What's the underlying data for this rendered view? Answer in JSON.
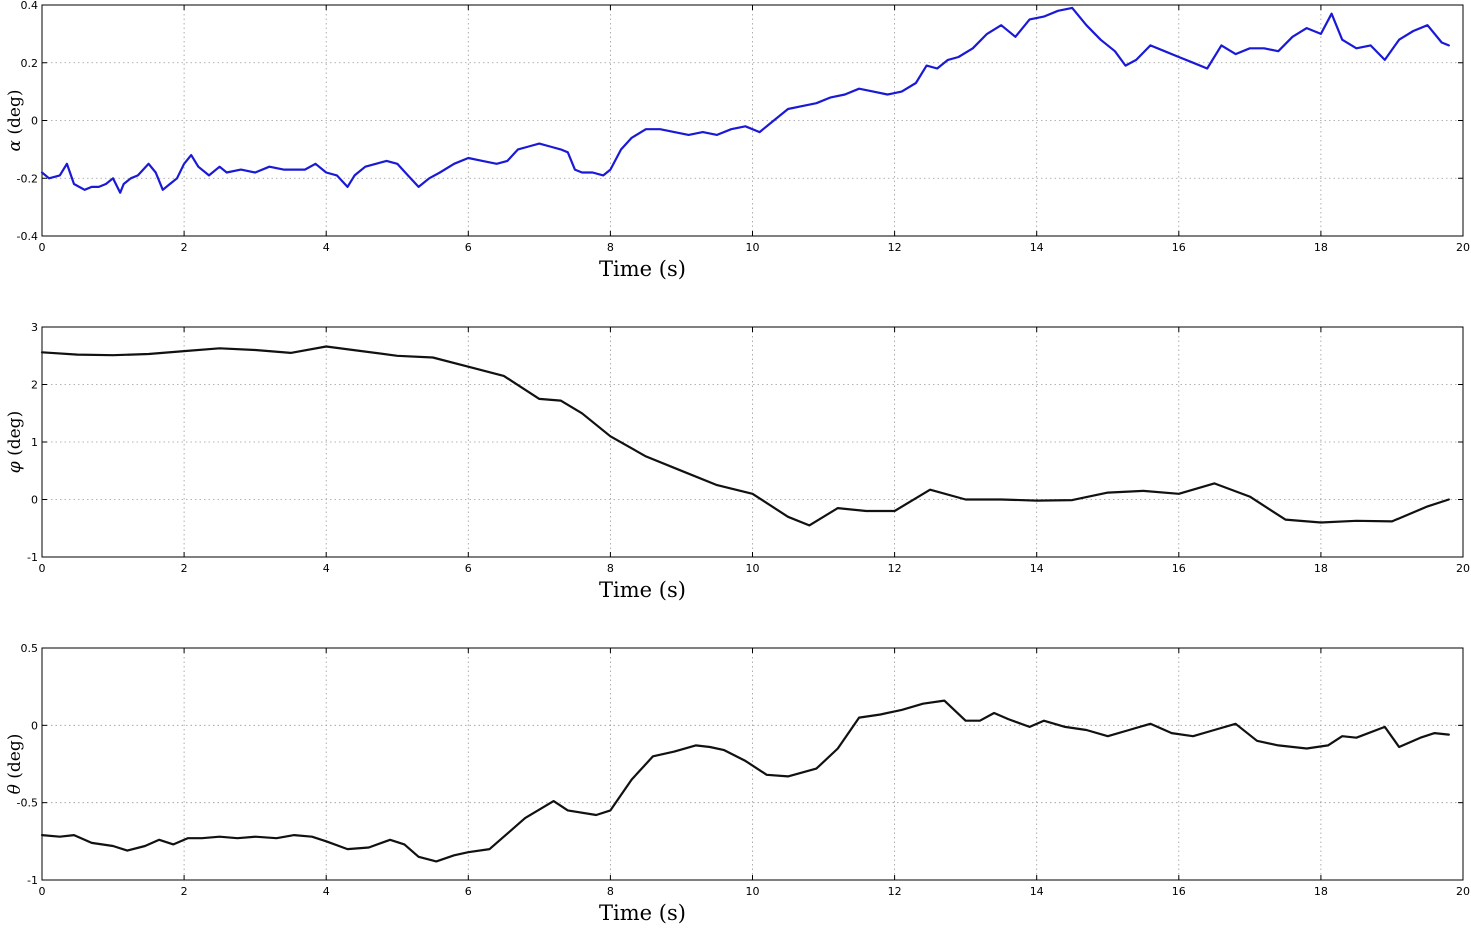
{
  "chart_data": [
    {
      "type": "line",
      "ylabel_symbol": "α",
      "ylabel_unit": " (deg)",
      "xlabel": "Time (s)",
      "xlim": [
        0,
        20
      ],
      "ylim": [
        -0.4,
        0.4
      ],
      "x_ticks": [
        "0",
        "2",
        "4",
        "6",
        "8",
        "10",
        "12",
        "14",
        "16",
        "18",
        "20"
      ],
      "y_ticks": [
        "0.4",
        "0.2",
        "0",
        "-0.2",
        "-0.4"
      ],
      "grid": true,
      "color": "#1a1ad6",
      "series": [
        {
          "x": [
            0,
            0.1,
            0.25,
            0.35,
            0.45,
            0.6,
            0.7,
            0.8,
            0.9,
            1.0,
            1.1,
            1.15,
            1.25,
            1.35,
            1.5,
            1.6,
            1.7,
            1.8,
            1.9,
            2.0,
            2.1,
            2.2,
            2.35,
            2.5,
            2.6,
            2.8,
            3.0,
            3.2,
            3.4,
            3.5,
            3.7,
            3.85,
            4.0,
            4.15,
            4.3,
            4.4,
            4.55,
            4.7,
            4.85,
            5.0,
            5.15,
            5.3,
            5.45,
            5.6,
            5.8,
            6.0,
            6.2,
            6.4,
            6.55,
            6.7,
            6.85,
            7.0,
            7.15,
            7.3,
            7.4,
            7.5,
            7.6,
            7.75,
            7.9,
            8.0,
            8.15,
            8.3,
            8.5,
            8.7,
            8.9,
            9.1,
            9.3,
            9.5,
            9.7,
            9.9,
            10.1,
            10.3,
            10.5,
            10.7,
            10.9,
            11.1,
            11.3,
            11.5,
            11.7,
            11.9,
            12.1,
            12.3,
            12.45,
            12.6,
            12.75,
            12.9,
            13.1,
            13.3,
            13.5,
            13.7,
            13.9,
            14.1,
            14.3,
            14.5,
            14.7,
            14.9,
            15.1,
            15.25,
            15.4,
            15.6,
            15.8,
            16.0,
            16.2,
            16.4,
            16.6,
            16.8,
            17.0,
            17.2,
            17.4,
            17.6,
            17.8,
            18.0,
            18.15,
            18.3,
            18.5,
            18.7,
            18.9,
            19.1,
            19.3,
            19.5,
            19.7,
            19.8
          ],
          "y": [
            -0.18,
            -0.2,
            -0.19,
            -0.15,
            -0.22,
            -0.24,
            -0.23,
            -0.23,
            -0.22,
            -0.2,
            -0.25,
            -0.22,
            -0.2,
            -0.19,
            -0.15,
            -0.18,
            -0.24,
            -0.22,
            -0.2,
            -0.15,
            -0.12,
            -0.16,
            -0.19,
            -0.16,
            -0.18,
            -0.17,
            -0.18,
            -0.16,
            -0.17,
            -0.17,
            -0.17,
            -0.15,
            -0.18,
            -0.19,
            -0.23,
            -0.19,
            -0.16,
            -0.15,
            -0.14,
            -0.15,
            -0.19,
            -0.23,
            -0.2,
            -0.18,
            -0.15,
            -0.13,
            -0.14,
            -0.15,
            -0.14,
            -0.1,
            -0.09,
            -0.08,
            -0.09,
            -0.1,
            -0.11,
            -0.17,
            -0.18,
            -0.18,
            -0.19,
            -0.17,
            -0.1,
            -0.06,
            -0.03,
            -0.03,
            -0.04,
            -0.05,
            -0.04,
            -0.05,
            -0.03,
            -0.02,
            -0.04,
            0.0,
            0.04,
            0.05,
            0.06,
            0.08,
            0.09,
            0.11,
            0.1,
            0.09,
            0.1,
            0.13,
            0.19,
            0.18,
            0.21,
            0.22,
            0.25,
            0.3,
            0.33,
            0.29,
            0.35,
            0.36,
            0.38,
            0.39,
            0.33,
            0.28,
            0.24,
            0.19,
            0.21,
            0.26,
            0.24,
            0.22,
            0.2,
            0.18,
            0.26,
            0.23,
            0.25,
            0.25,
            0.24,
            0.29,
            0.32,
            0.3,
            0.37,
            0.28,
            0.25,
            0.26,
            0.21,
            0.28,
            0.31,
            0.33,
            0.27,
            0.26
          ]
        }
      ]
    },
    {
      "type": "line",
      "ylabel_symbol": "φ",
      "ylabel_unit": " (deg)",
      "xlabel": "Time (s)",
      "xlim": [
        0,
        20
      ],
      "ylim": [
        -1,
        3
      ],
      "x_ticks": [
        "0",
        "2",
        "4",
        "6",
        "8",
        "10",
        "12",
        "14",
        "16",
        "18",
        "20"
      ],
      "y_ticks": [
        "3",
        "2",
        "1",
        "0",
        "-1"
      ],
      "grid": true,
      "color": "#111111",
      "series": [
        {
          "x": [
            0,
            0.5,
            1.0,
            1.5,
            2.0,
            2.5,
            3.0,
            3.5,
            4.0,
            4.5,
            5.0,
            5.5,
            6.0,
            6.5,
            7.0,
            7.3,
            7.6,
            8.0,
            8.5,
            9.0,
            9.5,
            10.0,
            10.5,
            10.8,
            11.2,
            11.6,
            12.0,
            12.5,
            13.0,
            13.5,
            14.0,
            14.5,
            15.0,
            15.5,
            16.0,
            16.5,
            17.0,
            17.5,
            18.0,
            18.5,
            19.0,
            19.5,
            19.8
          ],
          "y": [
            2.56,
            2.52,
            2.51,
            2.53,
            2.58,
            2.63,
            2.6,
            2.55,
            2.66,
            2.58,
            2.5,
            2.47,
            2.31,
            2.15,
            1.75,
            1.72,
            1.5,
            1.1,
            0.75,
            0.5,
            0.25,
            0.1,
            -0.3,
            -0.45,
            -0.15,
            -0.2,
            -0.2,
            0.17,
            0.0,
            0.0,
            -0.02,
            -0.01,
            0.12,
            0.15,
            0.1,
            0.28,
            0.05,
            -0.35,
            -0.4,
            -0.37,
            -0.38,
            -0.12,
            0.0
          ]
        }
      ]
    },
    {
      "type": "line",
      "ylabel_symbol": "θ",
      "ylabel_unit": " (deg)",
      "xlabel": "Time (s)",
      "xlim": [
        0,
        20
      ],
      "ylim": [
        -1,
        0.5
      ],
      "x_ticks": [
        "0",
        "2",
        "4",
        "6",
        "8",
        "10",
        "12",
        "14",
        "16",
        "18",
        "20"
      ],
      "y_ticks": [
        "0.5",
        "0",
        "-0.5",
        "-1"
      ],
      "grid": true,
      "color": "#111111",
      "series": [
        {
          "x": [
            0,
            0.25,
            0.45,
            0.7,
            1.0,
            1.2,
            1.45,
            1.65,
            1.85,
            2.05,
            2.25,
            2.5,
            2.75,
            3.0,
            3.3,
            3.55,
            3.8,
            4.0,
            4.3,
            4.6,
            4.9,
            5.1,
            5.3,
            5.55,
            5.8,
            6.0,
            6.3,
            6.5,
            6.8,
            7.2,
            7.4,
            7.8,
            8.0,
            8.3,
            8.6,
            8.9,
            9.2,
            9.4,
            9.6,
            9.9,
            10.2,
            10.5,
            10.9,
            11.2,
            11.5,
            11.8,
            12.1,
            12.4,
            12.7,
            13.0,
            13.2,
            13.4,
            13.6,
            13.9,
            14.1,
            14.4,
            14.7,
            15.0,
            15.3,
            15.6,
            15.9,
            16.2,
            16.5,
            16.8,
            17.1,
            17.4,
            17.8,
            18.1,
            18.3,
            18.5,
            18.9,
            19.1,
            19.4,
            19.6,
            19.8
          ],
          "y": [
            -0.71,
            -0.72,
            -0.71,
            -0.76,
            -0.78,
            -0.81,
            -0.78,
            -0.74,
            -0.77,
            -0.73,
            -0.73,
            -0.72,
            -0.73,
            -0.72,
            -0.73,
            -0.71,
            -0.72,
            -0.75,
            -0.8,
            -0.79,
            -0.74,
            -0.77,
            -0.85,
            -0.88,
            -0.84,
            -0.82,
            -0.8,
            -0.72,
            -0.6,
            -0.49,
            -0.55,
            -0.58,
            -0.55,
            -0.35,
            -0.2,
            -0.17,
            -0.13,
            -0.14,
            -0.16,
            -0.23,
            -0.32,
            -0.33,
            -0.28,
            -0.15,
            0.05,
            0.07,
            0.1,
            0.14,
            0.16,
            0.03,
            0.03,
            0.08,
            0.04,
            -0.01,
            0.03,
            -0.01,
            -0.03,
            -0.07,
            -0.03,
            0.01,
            -0.05,
            -0.07,
            -0.03,
            0.01,
            -0.1,
            -0.13,
            -0.15,
            -0.13,
            -0.07,
            -0.08,
            -0.01,
            -0.14,
            -0.08,
            -0.05,
            -0.06
          ]
        }
      ]
    }
  ]
}
